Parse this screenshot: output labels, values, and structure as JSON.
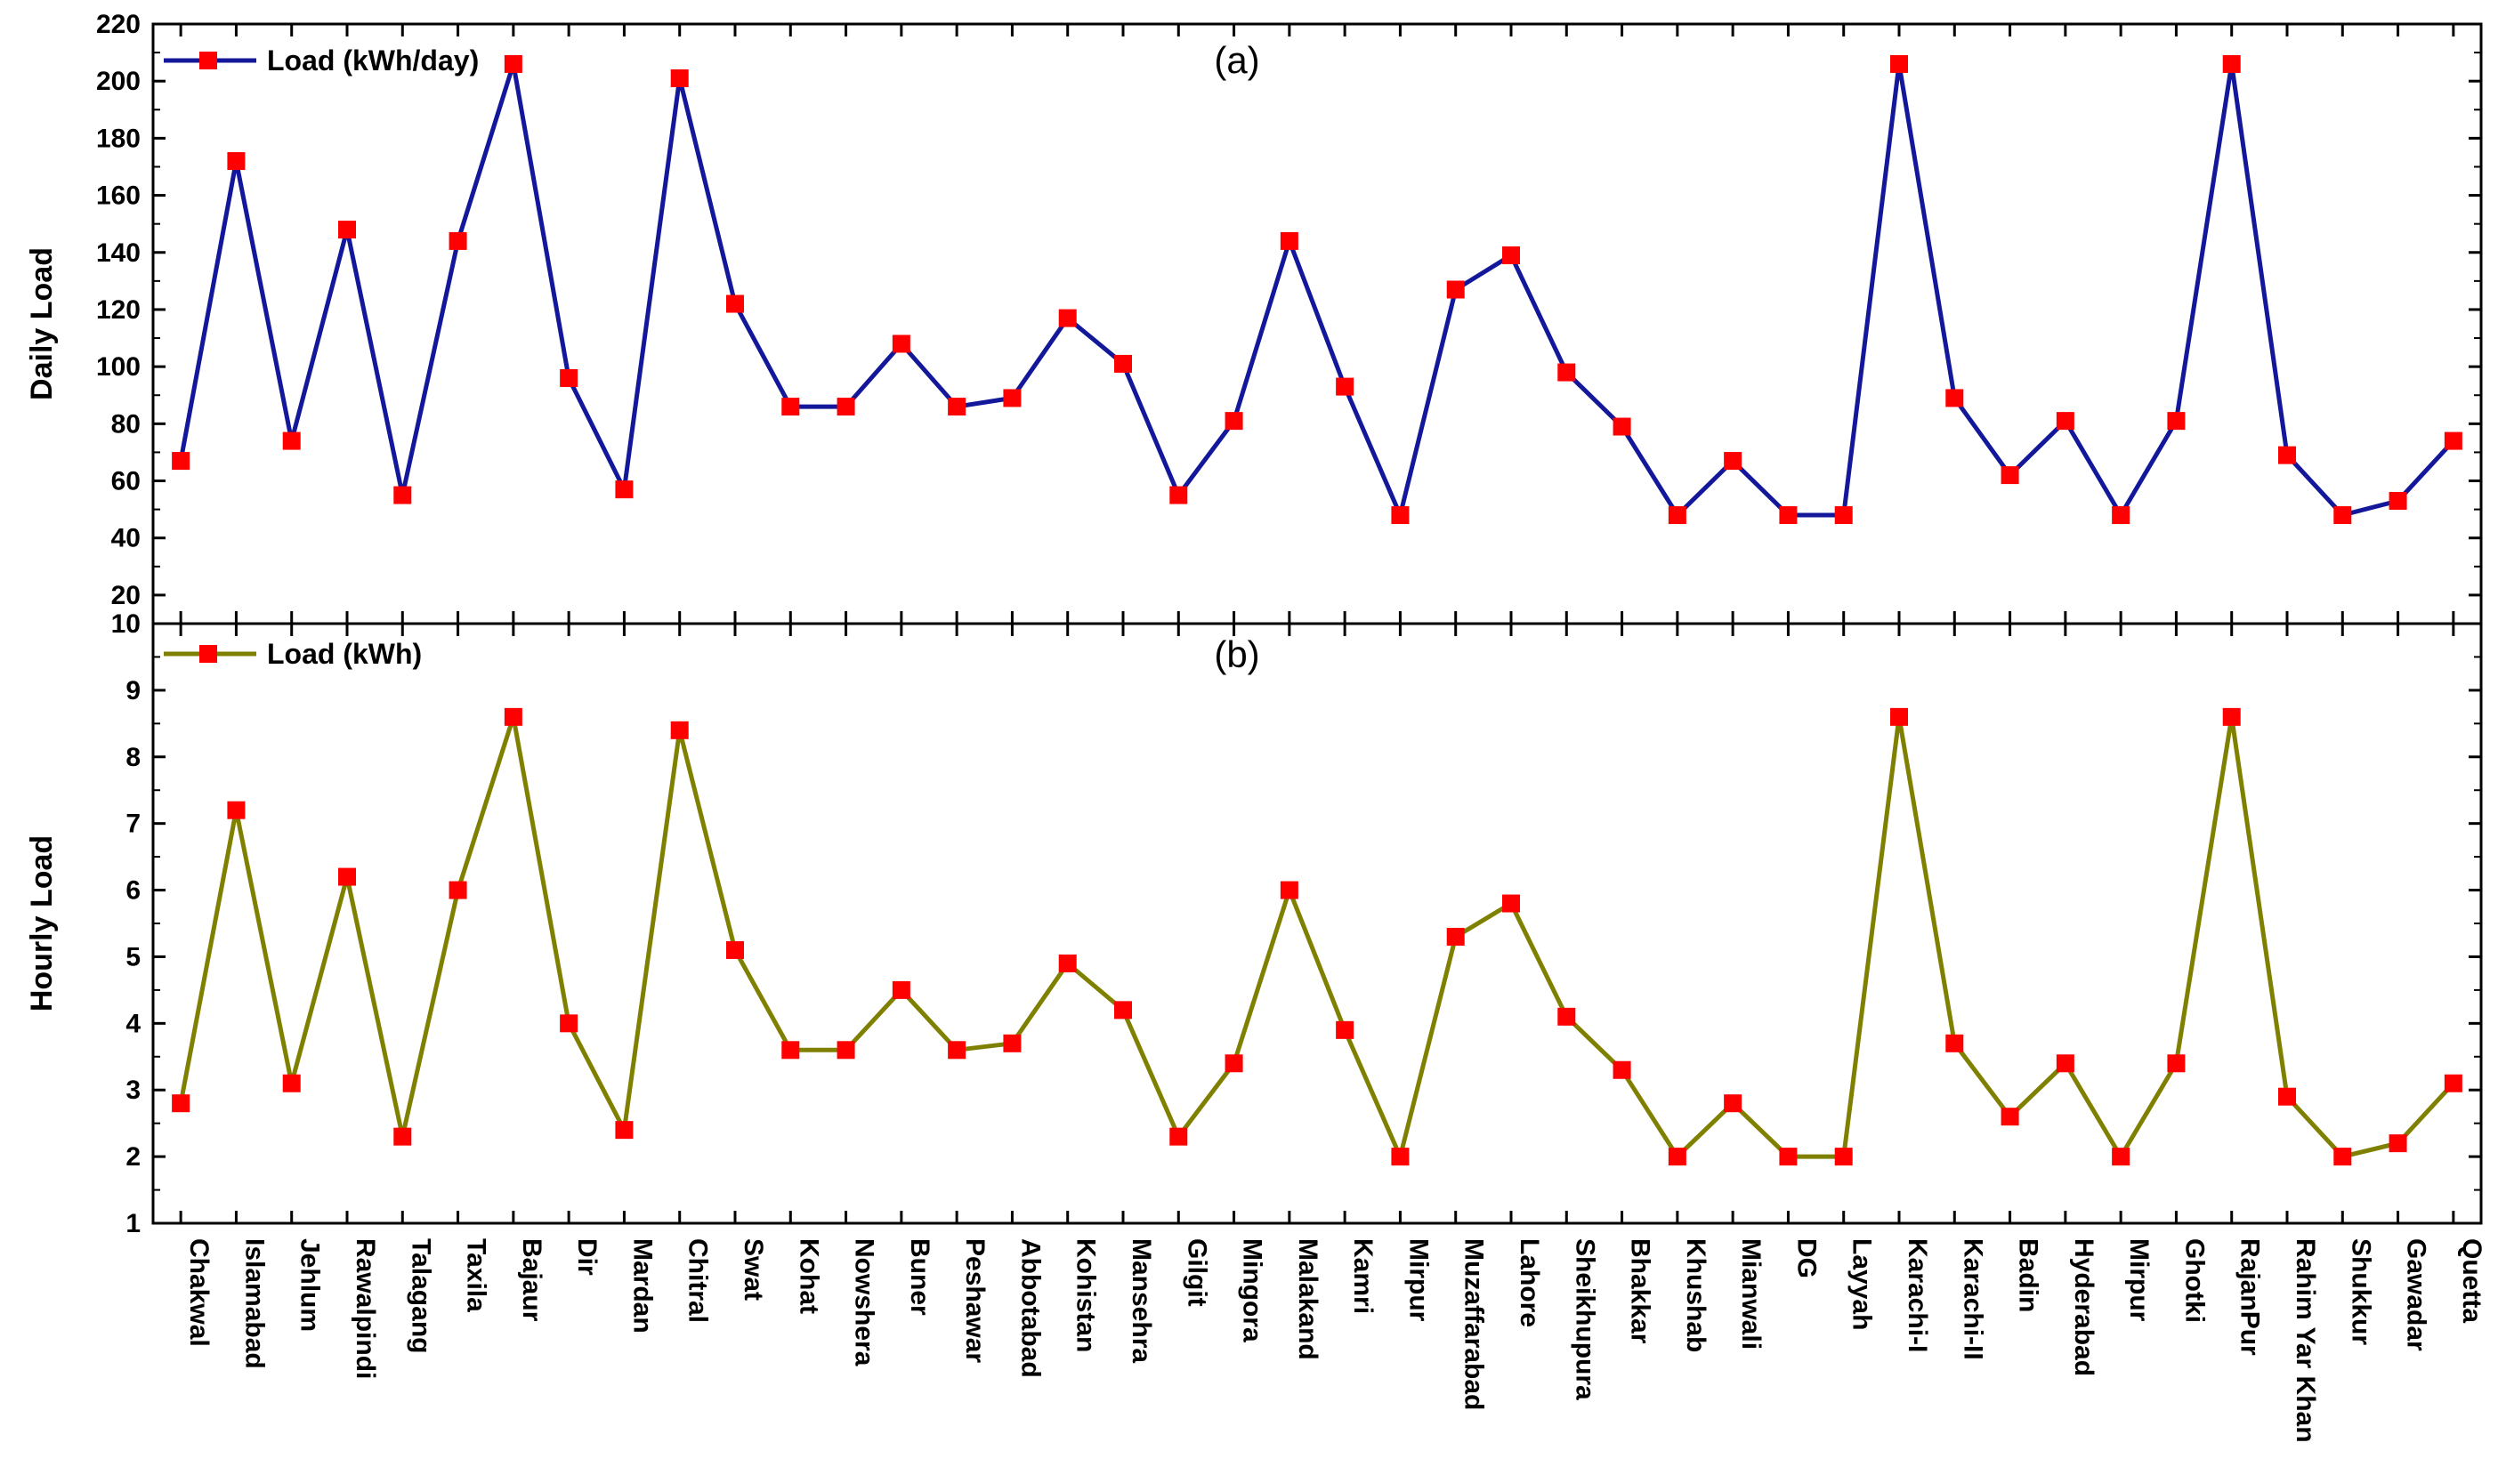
{
  "chart_data": [
    {
      "type": "line",
      "panel_label": "(a)",
      "ylabel": "Daily Load",
      "xlabel": "",
      "ylim": [
        10,
        220
      ],
      "y_ticks": [
        20,
        40,
        60,
        80,
        100,
        120,
        140,
        160,
        180,
        200,
        220
      ],
      "grid": false,
      "legend_position": "top-left",
      "color": "#13179a",
      "marker_color": "#ff0000",
      "categories": [
        "Chakwal",
        "Islamabad",
        "Jehlum",
        "Rawalpindi",
        "Talagang",
        "Taxila",
        "Bajaur",
        "Dir",
        "Mardan",
        "Chitral",
        "Swat",
        "Kohat",
        "Nowshera",
        "Buner",
        "Peshawar",
        "Abbotabad",
        "Kohistan",
        "Mansehra",
        "Gilgit",
        "Mingora",
        "Malakand",
        "Kamri",
        "Mirpur",
        "Muzaffarabad",
        "Lahore",
        "Sheikhupura",
        "Bhakkar",
        "Khushab",
        "Mianwali",
        "DG",
        "Layyah",
        "Karachi-I",
        "Karachi-II",
        "Badin",
        "Hyderabad",
        "Mirpur",
        "Ghotki",
        "RajanPur",
        "Rahim Yar Khan",
        "Shukkur",
        "Gawadar",
        "Quetta"
      ],
      "series": [
        {
          "name": "Load (kWh/day)",
          "values": [
            67,
            172,
            74,
            148,
            55,
            144,
            206,
            96,
            57,
            201,
            122,
            86,
            86,
            108,
            86,
            89,
            117,
            101,
            55,
            81,
            144,
            93,
            48,
            127,
            139,
            98,
            79,
            48,
            67,
            48,
            48,
            206,
            89,
            62,
            81,
            48,
            81,
            206,
            69,
            48,
            53,
            74
          ]
        }
      ]
    },
    {
      "type": "line",
      "panel_label": "(b)",
      "ylabel": "Hourly Load",
      "xlabel": "",
      "ylim": [
        1,
        10
      ],
      "y_ticks": [
        1,
        2,
        3,
        4,
        5,
        6,
        7,
        8,
        9,
        10
      ],
      "grid": false,
      "legend_position": "top-left",
      "color": "#808000",
      "marker_color": "#ff0000",
      "categories": [
        "Chakwal",
        "Islamabad",
        "Jehlum",
        "Rawalpindi",
        "Talagang",
        "Taxila",
        "Bajaur",
        "Dir",
        "Mardan",
        "Chitral",
        "Swat",
        "Kohat",
        "Nowshera",
        "Buner",
        "Peshawar",
        "Abbotabad",
        "Kohistan",
        "Mansehra",
        "Gilgit",
        "Mingora",
        "Malakand",
        "Kamri",
        "Mirpur",
        "Muzaffarabad",
        "Lahore",
        "Sheikhupura",
        "Bhakkar",
        "Khushab",
        "Mianwali",
        "DG",
        "Layyah",
        "Karachi-I",
        "Karachi-II",
        "Badin",
        "Hyderabad",
        "Mirpur",
        "Ghotki",
        "RajanPur",
        "Rahim Yar Khan",
        "Shukkur",
        "Gawadar",
        "Quetta"
      ],
      "series": [
        {
          "name": "Load (kWh)",
          "values": [
            2.8,
            7.2,
            3.1,
            6.2,
            2.3,
            6.0,
            8.6,
            4.0,
            2.4,
            8.4,
            5.1,
            3.6,
            3.6,
            4.5,
            3.6,
            3.7,
            4.9,
            4.2,
            2.3,
            3.4,
            6.0,
            3.9,
            2.0,
            5.3,
            5.8,
            4.1,
            3.3,
            2.0,
            2.8,
            2.0,
            2.0,
            8.6,
            3.7,
            2.6,
            3.4,
            2.0,
            3.4,
            8.6,
            2.9,
            2.0,
            2.2,
            3.1
          ]
        }
      ]
    }
  ]
}
